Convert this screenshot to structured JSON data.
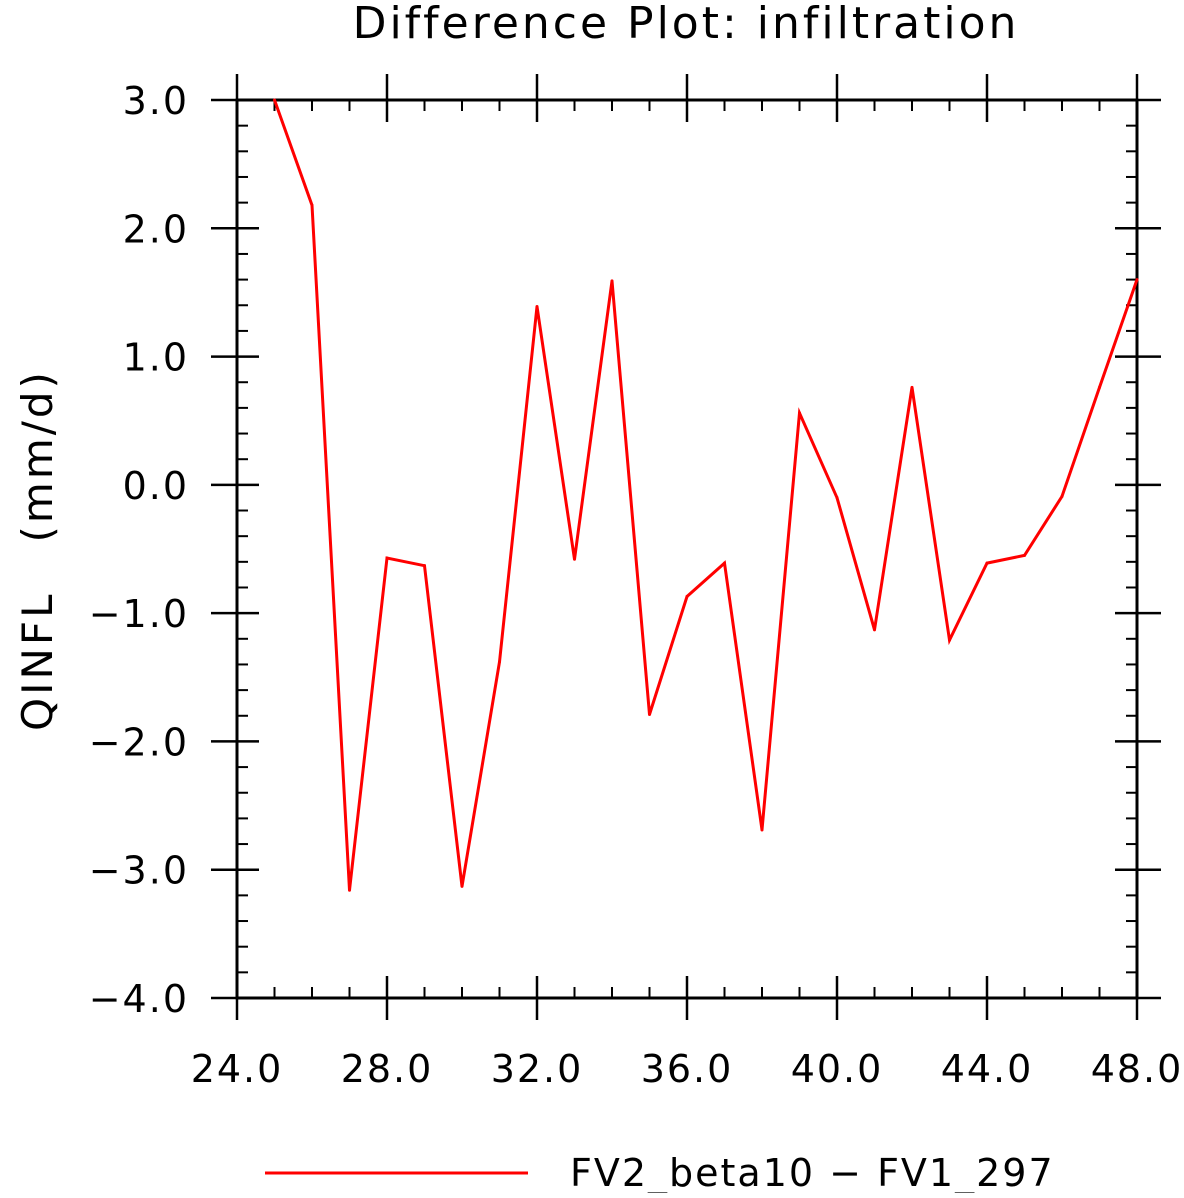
{
  "chart_data": {
    "type": "line",
    "title": "Difference Plot: infiltration",
    "xlabel": "",
    "ylabel": "QINFL   (mm/d)",
    "xlim": [
      24,
      48
    ],
    "ylim": [
      -4,
      3
    ],
    "xticks": [
      24,
      28,
      32,
      36,
      40,
      44,
      48
    ],
    "xtick_labels": [
      "24.0",
      "28.0",
      "32.0",
      "36.0",
      "40.0",
      "44.0",
      "48.0"
    ],
    "yticks": [
      3,
      2,
      1,
      0,
      -1,
      -2,
      -3,
      -4
    ],
    "ytick_labels": [
      "3.0",
      "2.0",
      "1.0",
      "0.0",
      "−1.0",
      "−2.0",
      "−3.0",
      "−4.0"
    ],
    "grid": false,
    "legend_position": "bottom",
    "series": [
      {
        "name": "FV2_beta10 − FV1_297",
        "color": "#ff0000",
        "x": [
          25,
          26,
          27,
          28,
          29,
          30,
          31,
          32,
          33,
          34,
          35,
          36,
          37,
          38,
          39,
          40,
          41,
          42,
          43,
          44,
          45,
          46,
          47,
          48
        ],
        "y": [
          3.0,
          2.18,
          -3.16,
          -0.57,
          -0.63,
          -3.13,
          -1.38,
          1.39,
          -0.58,
          1.59,
          -1.79,
          -0.87,
          -0.61,
          -2.69,
          0.56,
          -0.1,
          -1.13,
          0.76,
          -1.21,
          -0.61,
          -0.55,
          -0.09,
          0.76,
          1.6
        ]
      }
    ]
  }
}
